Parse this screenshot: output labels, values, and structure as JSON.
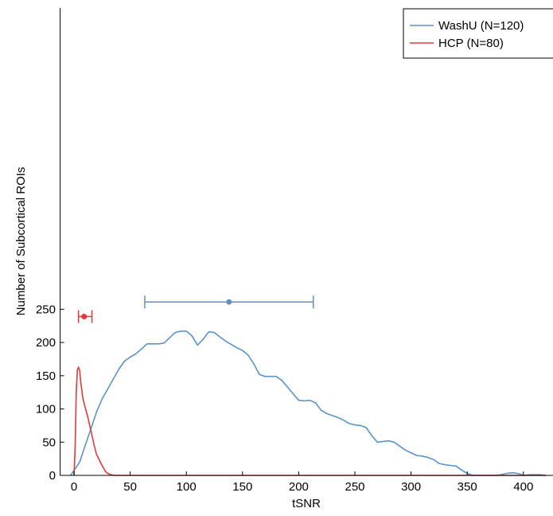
{
  "chart_data": {
    "type": "line",
    "title": "",
    "xlabel": "tSNR",
    "ylabel": "Number of Subcortical ROIs",
    "xlim": [
      -10,
      420
    ],
    "ylim": [
      0,
      280
    ],
    "xticks": [
      0,
      50,
      100,
      150,
      200,
      250,
      300,
      350,
      400
    ],
    "yticks": [
      0,
      50,
      100,
      150,
      200,
      250
    ],
    "grid": false,
    "legend_position": "top-right",
    "series": [
      {
        "name": "WashU (N=120)",
        "color": "#5b93c9",
        "points": [
          [
            -3,
            0
          ],
          [
            5,
            20
          ],
          [
            10,
            45
          ],
          [
            15,
            70
          ],
          [
            20,
            95
          ],
          [
            25,
            115
          ],
          [
            30,
            130
          ],
          [
            35,
            145
          ],
          [
            40,
            160
          ],
          [
            45,
            172
          ],
          [
            50,
            178
          ],
          [
            55,
            183
          ],
          [
            60,
            190
          ],
          [
            65,
            198
          ],
          [
            70,
            198
          ],
          [
            75,
            198
          ],
          [
            80,
            199
          ],
          [
            85,
            207
          ],
          [
            90,
            215
          ],
          [
            95,
            217
          ],
          [
            100,
            217
          ],
          [
            105,
            210
          ],
          [
            110,
            196
          ],
          [
            115,
            205
          ],
          [
            120,
            216
          ],
          [
            125,
            215
          ],
          [
            130,
            208
          ],
          [
            135,
            202
          ],
          [
            140,
            197
          ],
          [
            145,
            192
          ],
          [
            150,
            188
          ],
          [
            155,
            181
          ],
          [
            160,
            168
          ],
          [
            165,
            152
          ],
          [
            170,
            149
          ],
          [
            175,
            149
          ],
          [
            180,
            149
          ],
          [
            185,
            143
          ],
          [
            190,
            133
          ],
          [
            195,
            123
          ],
          [
            200,
            113
          ],
          [
            205,
            112
          ],
          [
            210,
            113
          ],
          [
            215,
            109
          ],
          [
            220,
            98
          ],
          [
            225,
            93
          ],
          [
            230,
            90
          ],
          [
            235,
            87
          ],
          [
            240,
            83
          ],
          [
            245,
            78
          ],
          [
            250,
            76
          ],
          [
            255,
            75
          ],
          [
            260,
            72
          ],
          [
            265,
            60
          ],
          [
            270,
            50
          ],
          [
            275,
            51
          ],
          [
            280,
            52
          ],
          [
            285,
            50
          ],
          [
            290,
            44
          ],
          [
            295,
            38
          ],
          [
            300,
            34
          ],
          [
            305,
            30
          ],
          [
            310,
            29
          ],
          [
            315,
            27
          ],
          [
            320,
            24
          ],
          [
            325,
            18
          ],
          [
            330,
            16
          ],
          [
            335,
            15
          ],
          [
            340,
            14
          ],
          [
            345,
            8
          ],
          [
            350,
            3
          ],
          [
            355,
            0
          ],
          [
            360,
            0
          ],
          [
            365,
            0
          ],
          [
            370,
            0
          ],
          [
            375,
            0
          ],
          [
            380,
            1
          ],
          [
            385,
            3
          ],
          [
            390,
            4
          ],
          [
            395,
            3
          ],
          [
            400,
            0
          ],
          [
            405,
            1
          ],
          [
            410,
            1
          ],
          [
            415,
            1
          ],
          [
            420,
            0
          ]
        ],
        "errorbar": {
          "mean": 138,
          "y": 261,
          "low": 63,
          "high": 213
        }
      },
      {
        "name": "HCP (N=80)",
        "color": "#e0393c",
        "points": [
          [
            0,
            0
          ],
          [
            1,
            40
          ],
          [
            2,
            125
          ],
          [
            3,
            158
          ],
          [
            4,
            163
          ],
          [
            5,
            158
          ],
          [
            6,
            140
          ],
          [
            8,
            115
          ],
          [
            10,
            102
          ],
          [
            12,
            90
          ],
          [
            14,
            75
          ],
          [
            16,
            60
          ],
          [
            18,
            45
          ],
          [
            20,
            32
          ],
          [
            22,
            25
          ],
          [
            24,
            18
          ],
          [
            26,
            12
          ],
          [
            28,
            6
          ],
          [
            30,
            3
          ],
          [
            33,
            1
          ],
          [
            36,
            0
          ],
          [
            40,
            0
          ],
          [
            100,
            0
          ],
          [
            200,
            0
          ],
          [
            300,
            0
          ],
          [
            420,
            0
          ]
        ],
        "errorbar": {
          "mean": 9,
          "y": 239,
          "low": 4,
          "high": 16
        }
      }
    ]
  }
}
